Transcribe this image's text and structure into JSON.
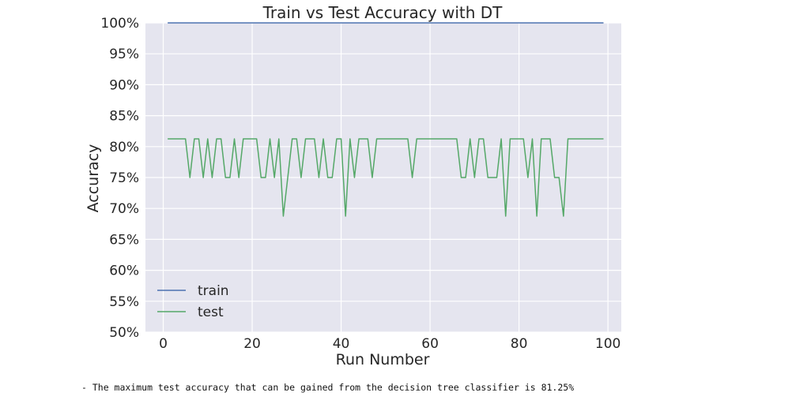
{
  "chart_data": {
    "type": "line",
    "title": "Train vs Test Accuracy with DT",
    "xlabel": "Run Number",
    "ylabel": "Accuracy",
    "xlim": [
      -4,
      103
    ],
    "ylim": [
      50,
      100
    ],
    "xticks": [
      0,
      20,
      40,
      60,
      80,
      100
    ],
    "xtick_labels": [
      "0",
      "20",
      "40",
      "60",
      "80",
      "100"
    ],
    "yticks": [
      50,
      55,
      60,
      65,
      70,
      75,
      80,
      85,
      90,
      95,
      100
    ],
    "ytick_labels": [
      "50%",
      "55%",
      "60%",
      "65%",
      "70%",
      "75%",
      "80%",
      "85%",
      "90%",
      "95%",
      "100%"
    ],
    "grid": true,
    "legend_position": "lower-left",
    "x": [
      1,
      2,
      3,
      4,
      5,
      6,
      7,
      8,
      9,
      10,
      11,
      12,
      13,
      14,
      15,
      16,
      17,
      18,
      19,
      20,
      21,
      22,
      23,
      24,
      25,
      26,
      27,
      28,
      29,
      30,
      31,
      32,
      33,
      34,
      35,
      36,
      37,
      38,
      39,
      40,
      41,
      42,
      43,
      44,
      45,
      46,
      47,
      48,
      49,
      50,
      51,
      52,
      53,
      54,
      55,
      56,
      57,
      58,
      59,
      60,
      61,
      62,
      63,
      64,
      65,
      66,
      67,
      68,
      69,
      70,
      71,
      72,
      73,
      74,
      75,
      76,
      77,
      78,
      79,
      80,
      81,
      82,
      83,
      84,
      85,
      86,
      87,
      88,
      89,
      90,
      91,
      92,
      93,
      94,
      95,
      96,
      97,
      98,
      99
    ],
    "series": [
      {
        "name": "train",
        "color": "#4c72b0",
        "values": [
          100,
          100,
          100,
          100,
          100,
          100,
          100,
          100,
          100,
          100,
          100,
          100,
          100,
          100,
          100,
          100,
          100,
          100,
          100,
          100,
          100,
          100,
          100,
          100,
          100,
          100,
          100,
          100,
          100,
          100,
          100,
          100,
          100,
          100,
          100,
          100,
          100,
          100,
          100,
          100,
          100,
          100,
          100,
          100,
          100,
          100,
          100,
          100,
          100,
          100,
          100,
          100,
          100,
          100,
          100,
          100,
          100,
          100,
          100,
          100,
          100,
          100,
          100,
          100,
          100,
          100,
          100,
          100,
          100,
          100,
          100,
          100,
          100,
          100,
          100,
          100,
          100,
          100,
          100,
          100,
          100,
          100,
          100,
          100,
          100,
          100,
          100,
          100,
          100,
          100,
          100,
          100,
          100,
          100,
          100,
          100,
          100,
          100,
          100
        ]
      },
      {
        "name": "test",
        "color": "#55a868",
        "values": [
          81.25,
          81.25,
          81.25,
          81.25,
          81.25,
          75,
          81.25,
          81.25,
          75,
          81.25,
          75,
          81.25,
          81.25,
          75,
          75,
          81.25,
          75,
          81.25,
          81.25,
          81.25,
          81.25,
          75,
          75,
          81.25,
          75,
          81.25,
          68.75,
          75,
          81.25,
          81.25,
          75,
          81.25,
          81.25,
          81.25,
          75,
          81.25,
          75,
          75,
          81.25,
          81.25,
          68.75,
          81.25,
          75,
          81.25,
          81.25,
          81.25,
          75,
          81.25,
          81.25,
          81.25,
          81.25,
          81.25,
          81.25,
          81.25,
          81.25,
          75,
          81.25,
          81.25,
          81.25,
          81.25,
          81.25,
          81.25,
          81.25,
          81.25,
          81.25,
          81.25,
          75,
          75,
          81.25,
          75,
          81.25,
          81.25,
          75,
          75,
          75,
          81.25,
          68.75,
          81.25,
          81.25,
          81.25,
          81.25,
          75,
          81.25,
          68.75,
          81.25,
          81.25,
          81.25,
          75,
          75,
          68.75,
          81.25,
          81.25,
          81.25,
          81.25,
          81.25,
          81.25,
          81.25,
          81.25,
          81.25
        ]
      }
    ]
  },
  "colors": {
    "plot_background": "#e5e5ef",
    "grid": "#ffffff"
  },
  "note": "- The maximum test accuracy that can be gained from the decision tree classifier is 81.25%"
}
